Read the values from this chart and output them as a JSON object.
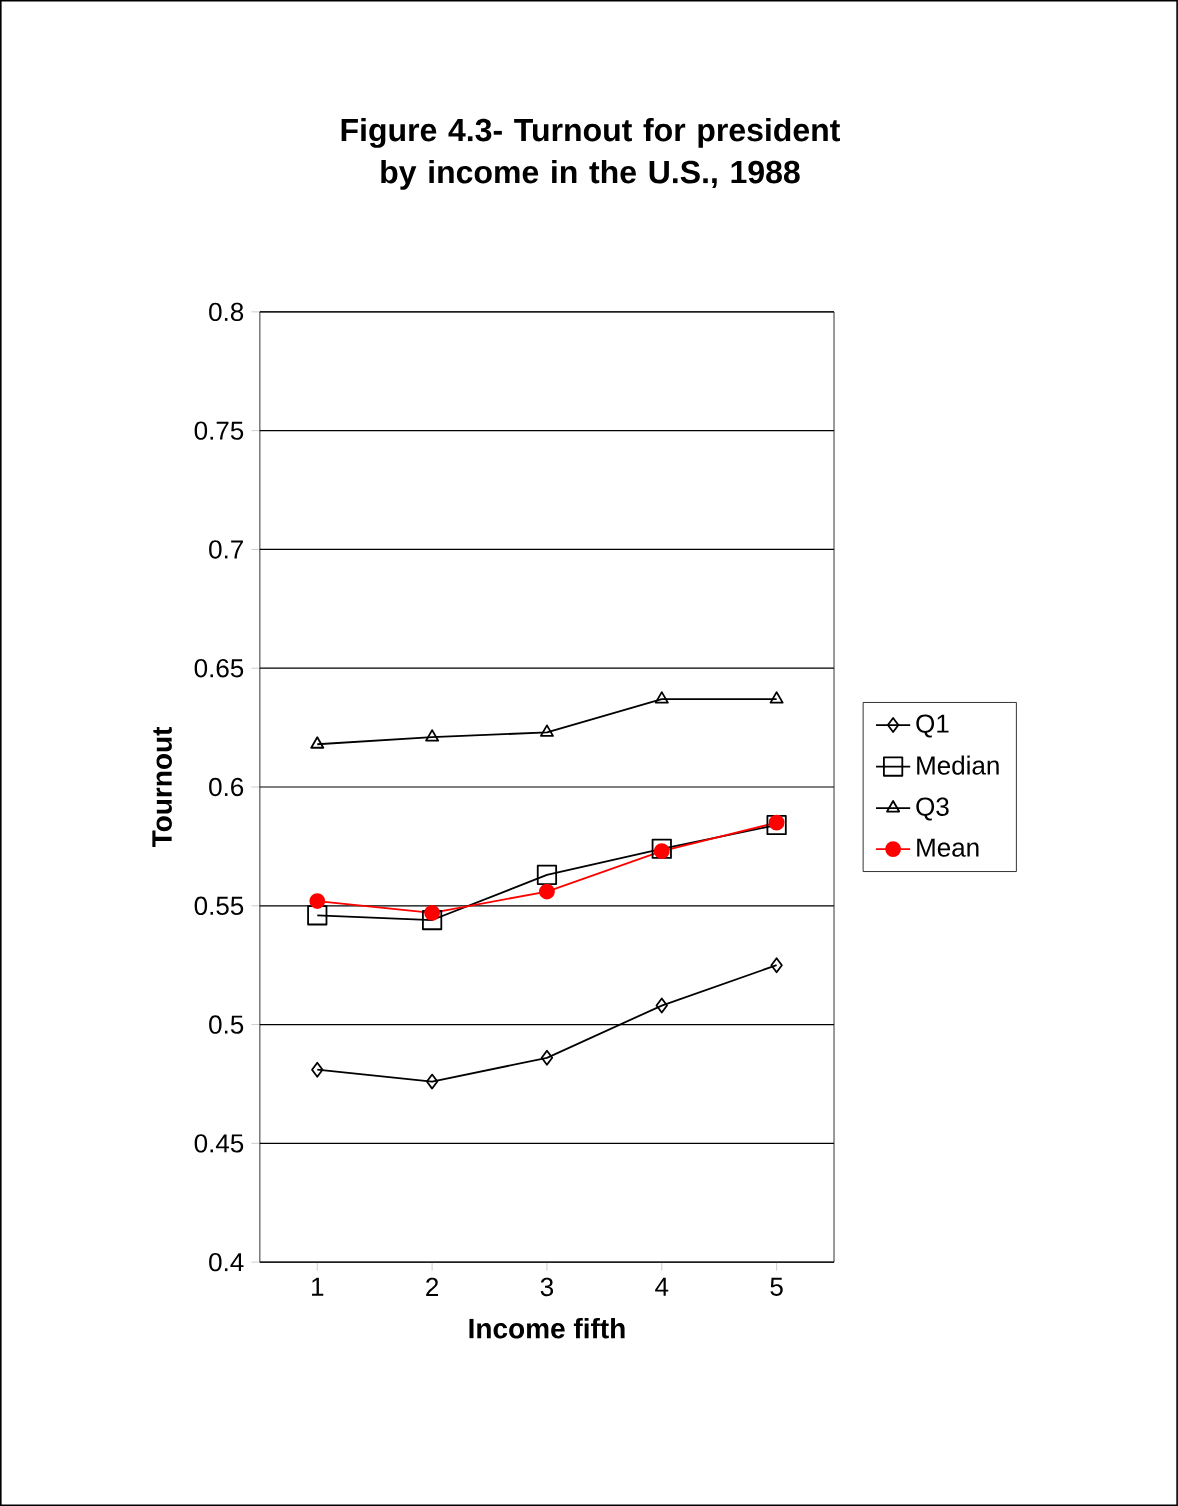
{
  "chart_data": {
    "type": "line",
    "title": "Figure 4.3- Turnout  for president by income in the U.S., 1988",
    "xlabel": "Income fifth",
    "ylabel": "Tournout",
    "categories": [
      "1",
      "2",
      "3",
      "4",
      "5"
    ],
    "series": [
      {
        "name": "Q1",
        "color": "#000000",
        "marker": "diamond",
        "values": [
          0.481,
          0.476,
          0.486,
          0.508,
          0.525
        ]
      },
      {
        "name": "Median",
        "color": "#000000",
        "marker": "square",
        "values": [
          0.546,
          0.544,
          0.563,
          0.574,
          0.584
        ]
      },
      {
        "name": "Q3",
        "color": "#000000",
        "marker": "triangle",
        "values": [
          0.618,
          0.621,
          0.623,
          0.637,
          0.637
        ]
      },
      {
        "name": "Mean",
        "color": "#ff0000",
        "marker": "circle",
        "values": [
          0.552,
          0.547,
          0.556,
          0.573,
          0.585
        ]
      }
    ],
    "ylim": [
      0.4,
      0.8
    ],
    "yticks": [
      0.4,
      0.45,
      0.5,
      0.55,
      0.6,
      0.65,
      0.7,
      0.75,
      0.8
    ],
    "grid": "y",
    "legend": "right"
  }
}
